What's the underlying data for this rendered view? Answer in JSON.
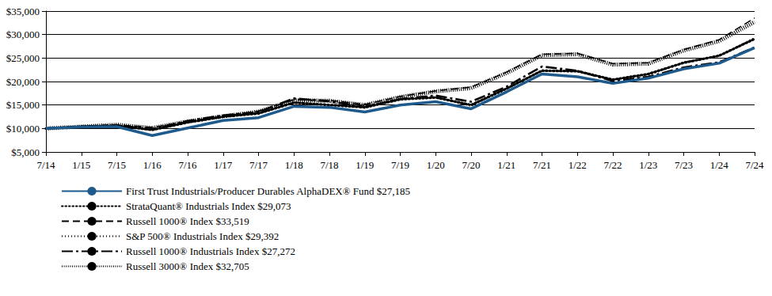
{
  "chart_data": {
    "type": "line",
    "categories": [
      "7/14",
      "1/15",
      "7/15",
      "1/16",
      "7/16",
      "1/17",
      "7/17",
      "1/18",
      "7/18",
      "1/19",
      "7/19",
      "1/20",
      "7/20",
      "1/21",
      "7/21",
      "1/22",
      "7/22",
      "1/23",
      "7/23",
      "1/24",
      "7/24"
    ],
    "ylim": [
      5000,
      35000
    ],
    "yticks": [
      {
        "value": 5000,
        "label": "$5,000"
      },
      {
        "value": 10000,
        "label": "$10,000"
      },
      {
        "value": 15000,
        "label": "$15,000"
      },
      {
        "value": 20000,
        "label": "$20,000"
      },
      {
        "value": 25000,
        "label": "$25,000"
      },
      {
        "value": 30000,
        "label": "$30,000"
      },
      {
        "value": 35000,
        "label": "$35,000"
      }
    ],
    "grid": true,
    "legend": "bottom-left",
    "series": [
      {
        "name": "First Trust Industrials/Producer Durables AlphaDEX® Fund $27,185",
        "color": "#1f5a8c",
        "line_style": "solid",
        "values": [
          10000,
          10300,
          10400,
          8500,
          10100,
          11700,
          12300,
          14700,
          14500,
          13500,
          15000,
          15700,
          14200,
          17800,
          21600,
          21000,
          19600,
          20700,
          22700,
          23900,
          27185
        ]
      },
      {
        "name": "StrataQuant® Industrials Index $29,073",
        "color": "#000000",
        "line_style": "dotted",
        "values": [
          10000,
          10400,
          10600,
          9700,
          11300,
          12500,
          13200,
          15500,
          15000,
          14500,
          16200,
          16600,
          15000,
          18500,
          22300,
          22200,
          20400,
          21600,
          24000,
          25500,
          29073
        ]
      },
      {
        "name": "Russell 1000® Index $33,519",
        "color": "#000000",
        "line_style": "dashed",
        "values": [
          10000,
          10500,
          10800,
          10200,
          11500,
          12600,
          13700,
          16100,
          16000,
          15100,
          16800,
          18000,
          18800,
          22000,
          25800,
          26000,
          23800,
          24000,
          26800,
          28900,
          33519
        ]
      },
      {
        "name": "S&P 500® Industrials Index $29,392",
        "color": "#000000",
        "line_style": "fine_dotted",
        "values": [
          10000,
          10300,
          10300,
          9600,
          11200,
          12700,
          13500,
          16200,
          15600,
          14300,
          16300,
          16800,
          14700,
          18300,
          22500,
          22100,
          20300,
          21200,
          24200,
          25400,
          29392
        ]
      },
      {
        "name": "Russell 1000® Industrials Index $27,272",
        "color": "#000000",
        "line_style": "long_dashed",
        "values": [
          10000,
          10300,
          10600,
          9900,
          11600,
          12800,
          13500,
          16400,
          15800,
          14600,
          16300,
          17000,
          15700,
          18900,
          23200,
          22300,
          20100,
          21000,
          23000,
          24100,
          27272
        ]
      },
      {
        "name": "Russell 3000® Index $32,705",
        "color": "#000000",
        "line_style": "hatched",
        "values": [
          10000,
          10400,
          10800,
          10100,
          11500,
          12600,
          13600,
          16000,
          15900,
          15000,
          16700,
          17900,
          18600,
          21800,
          25600,
          25800,
          23600,
          23800,
          26600,
          28600,
          32705
        ]
      }
    ]
  }
}
